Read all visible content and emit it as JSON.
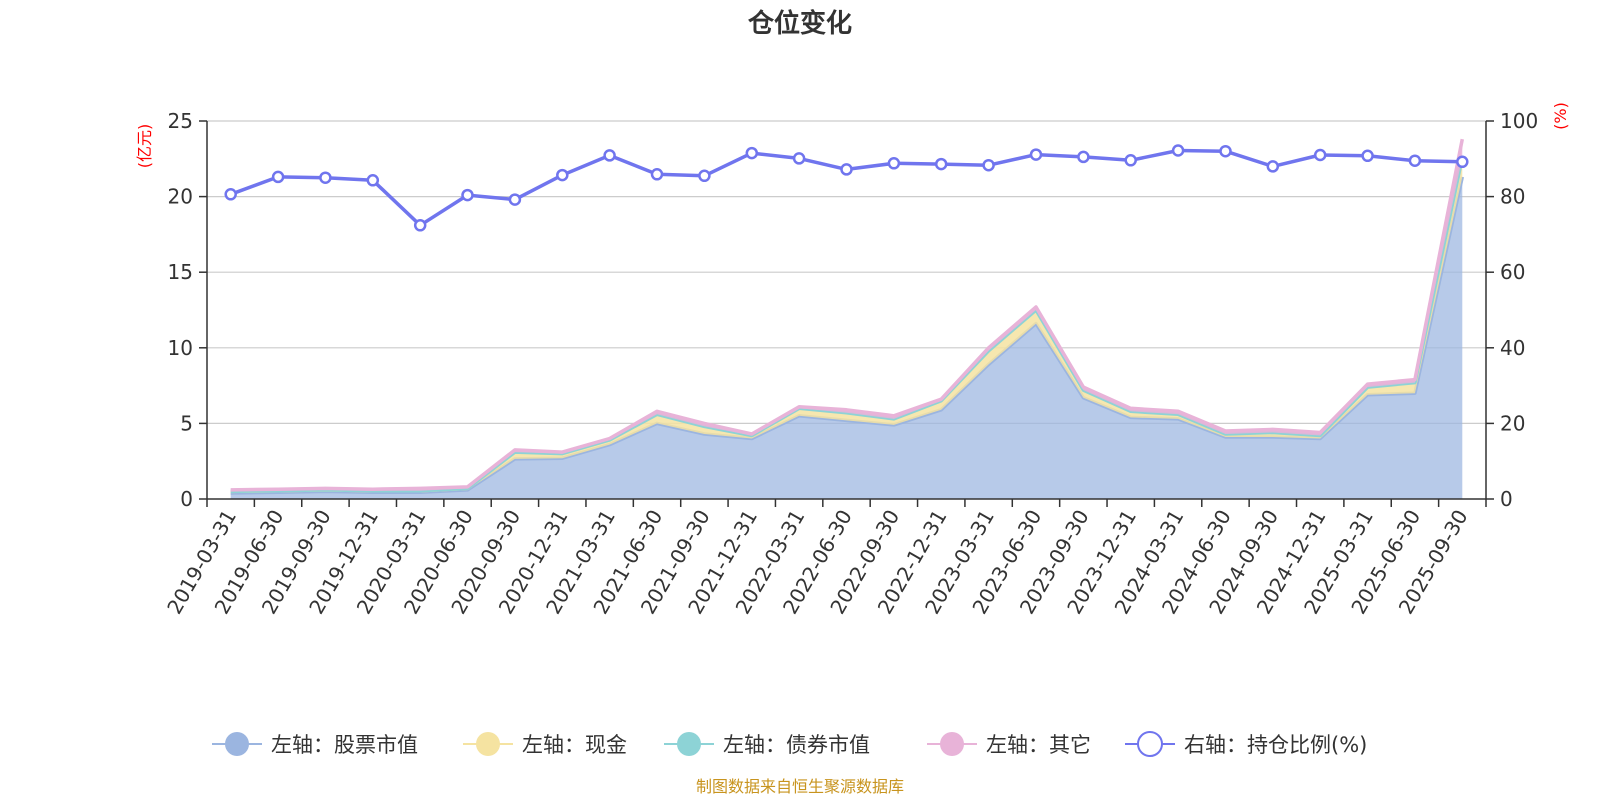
{
  "chart_data": {
    "type": "area",
    "title": "仓位变化",
    "categories": [
      "2019-03-31",
      "2019-06-30",
      "2019-09-30",
      "2019-12-31",
      "2020-03-31",
      "2020-06-30",
      "2020-09-30",
      "2020-12-31",
      "2021-03-31",
      "2021-06-30",
      "2021-09-30",
      "2021-12-31",
      "2022-03-31",
      "2022-06-30",
      "2022-09-30",
      "2022-12-31",
      "2023-03-31",
      "2023-06-30",
      "2023-09-30",
      "2023-12-31",
      "2024-03-31",
      "2024-06-30",
      "2024-09-30",
      "2024-12-31",
      "2025-03-31",
      "2025-06-30",
      "2025-09-30"
    ],
    "left_axis": {
      "unit": "(亿元)",
      "ylim": [
        0,
        25
      ],
      "ticks": [
        "0",
        "5",
        "10",
        "15",
        "20",
        "25"
      ]
    },
    "right_axis": {
      "unit": "(%)",
      "ylim": [
        0,
        100
      ],
      "ticks": [
        "0",
        "20",
        "40",
        "60",
        "80",
        "100"
      ]
    },
    "series": [
      {
        "name": "左轴：股票市值",
        "axis": "left",
        "stack": true,
        "color": "#9bb5e0",
        "values": [
          0.4,
          0.45,
          0.5,
          0.45,
          0.45,
          0.6,
          2.65,
          2.7,
          3.6,
          5.0,
          4.3,
          4.0,
          5.5,
          5.2,
          4.9,
          5.9,
          8.9,
          11.6,
          6.7,
          5.4,
          5.3,
          4.1,
          4.1,
          4.0,
          6.9,
          7.0,
          21.3
        ]
      },
      {
        "name": "左轴：现金",
        "axis": "left",
        "stack": true,
        "color": "#f5e3a1",
        "values": [
          0.1,
          0.1,
          0.1,
          0.1,
          0.1,
          0.1,
          0.45,
          0.3,
          0.3,
          0.6,
          0.5,
          0.2,
          0.5,
          0.5,
          0.4,
          0.6,
          0.9,
          0.9,
          0.5,
          0.4,
          0.3,
          0.2,
          0.3,
          0.2,
          0.5,
          0.7,
          1.3
        ]
      },
      {
        "name": "左轴：债券市值",
        "axis": "left",
        "stack": true,
        "color": "#8dd3d6",
        "values": [
          0,
          0,
          0,
          0,
          0,
          0,
          0,
          0,
          0,
          0,
          0,
          0,
          0,
          0,
          0,
          0,
          0,
          0,
          0,
          0,
          0,
          0,
          0,
          0,
          0,
          0,
          0
        ]
      },
      {
        "name": "左轴：其它",
        "axis": "left",
        "stack": true,
        "color": "#e8b3d8",
        "values": [
          0.1,
          0.1,
          0.1,
          0.1,
          0.15,
          0.1,
          0.15,
          0.1,
          0.1,
          0.2,
          0.2,
          0.1,
          0.1,
          0.2,
          0.2,
          0.1,
          0.2,
          0.2,
          0.2,
          0.2,
          0.2,
          0.2,
          0.2,
          0.2,
          0.2,
          0.2,
          1.2
        ]
      },
      {
        "name": "右轴：持仓比例(%)",
        "axis": "right",
        "stack": false,
        "color": "#7075ee",
        "values": [
          80.6,
          85.2,
          85.0,
          84.3,
          72.4,
          80.4,
          79.2,
          85.7,
          90.9,
          85.9,
          85.5,
          91.5,
          90.1,
          87.2,
          88.8,
          88.6,
          88.3,
          91.1,
          90.5,
          89.6,
          92.2,
          92.0,
          88.0,
          91.0,
          90.8,
          89.5,
          89.2
        ]
      }
    ],
    "legend_position": "bottom",
    "grid": true
  },
  "source_note": "制图数据来自恒生聚源数据库"
}
